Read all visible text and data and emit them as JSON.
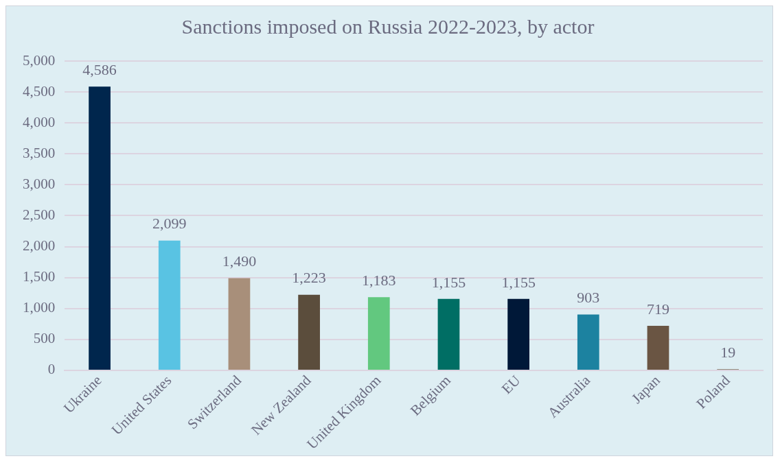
{
  "chart_data": {
    "type": "bar",
    "title": "Sanctions imposed on Russia 2022-2023, by actor",
    "categories": [
      "Ukraine",
      "United States",
      "Switzerland",
      "New Zealand",
      "United Kingdom",
      "Belgium",
      "EU",
      "Australia",
      "Japan",
      "Poland"
    ],
    "values": [
      4586,
      2099,
      1490,
      1223,
      1183,
      1155,
      1155,
      903,
      719,
      19
    ],
    "colors": [
      "#00264d",
      "#59c3e3",
      "#a88f7a",
      "#5b4d3c",
      "#62c87f",
      "#006e64",
      "#001838",
      "#1c82a0",
      "#6a5543",
      "#7a6a58"
    ],
    "value_labels": [
      "4,586",
      "2,099",
      "1,490",
      "1,223",
      "1,183",
      "1,155",
      "1,155",
      "903",
      "719",
      "19"
    ],
    "ylim": [
      0,
      5000
    ],
    "yticks": [
      {
        "value": 0,
        "label": "0"
      },
      {
        "value": 500,
        "label": "500"
      },
      {
        "value": 1000,
        "label": "1,000"
      },
      {
        "value": 1500,
        "label": "1,500"
      },
      {
        "value": 2000,
        "label": "2,000"
      },
      {
        "value": 2500,
        "label": "2,500"
      },
      {
        "value": 3000,
        "label": "3,000"
      },
      {
        "value": 3500,
        "label": "3,500"
      },
      {
        "value": 4000,
        "label": "4,000"
      },
      {
        "value": 4500,
        "label": "4,500"
      },
      {
        "value": 5000,
        "label": "5,000"
      }
    ],
    "grid": "y",
    "legend": false
  }
}
